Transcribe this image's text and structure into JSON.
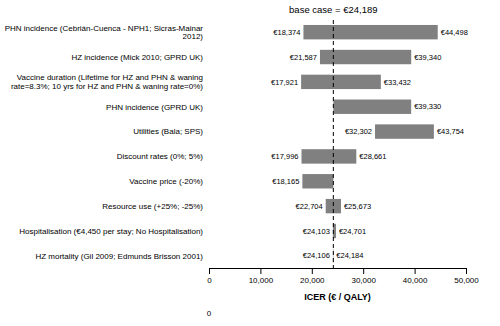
{
  "chart_data": {
    "type": "bar",
    "orientation": "horizontal",
    "title": "base case = €24,189",
    "base_case": 24189,
    "xlabel": "ICER (€ / QALY)",
    "color": "#808080",
    "grid": false,
    "data_labels": true,
    "categories": [
      "PHN incidence (Cebrián-Cuenca - NPH1; Sicras-Mainar\n2012)",
      "HZ incidence (Mick 2010; GPRD UK)",
      "Vaccine duration (Lifetime for HZ and PHN & waning\nrate=8.3%; 10 yrs for HZ and PHN & waning rate=0%)",
      "PHN incidence (GPRD UK)",
      "Utilities (Bala; SPS)",
      "Discount rates (0%; 5%)",
      "Vaccine price (-20%)",
      "Resource use (+25%; -25%)",
      "Hospitalisation (€4,450 per stay; No Hospitalisation)",
      "HZ mortality (Gil 2009; Edmunds Brisson 2001)"
    ],
    "low": [
      18374,
      21587,
      17921,
      24189,
      32302,
      17996,
      18165,
      22704,
      24103,
      24106
    ],
    "high": [
      44498,
      39340,
      33432,
      39330,
      43754,
      28661,
      24189,
      25673,
      24701,
      24184
    ],
    "low_labels": [
      "€18,374",
      "€21,587",
      "€17,921",
      null,
      "€32,302",
      "€17,996",
      "€18,165",
      "€22,704",
      "€24,103",
      "€24,106"
    ],
    "high_labels": [
      "€44,498",
      "€39,340",
      "€33,432",
      "€39,330",
      "€43,754",
      "€28,661",
      null,
      "€25,673",
      "€24,701",
      "€24,184"
    ],
    "xlim": [
      0,
      50000
    ],
    "xticks": [
      0,
      {
        "value": 10000,
        "label": "10,000"
      },
      {
        "value": 20000,
        "label": "20,000"
      },
      {
        "value": 30000,
        "label": "30,000"
      },
      {
        "value": 40000,
        "label": "40,000"
      },
      {
        "value": 50000,
        "label": "50,000"
      }
    ],
    "annotations": [
      {
        "x": 0,
        "text": "0"
      }
    ]
  }
}
